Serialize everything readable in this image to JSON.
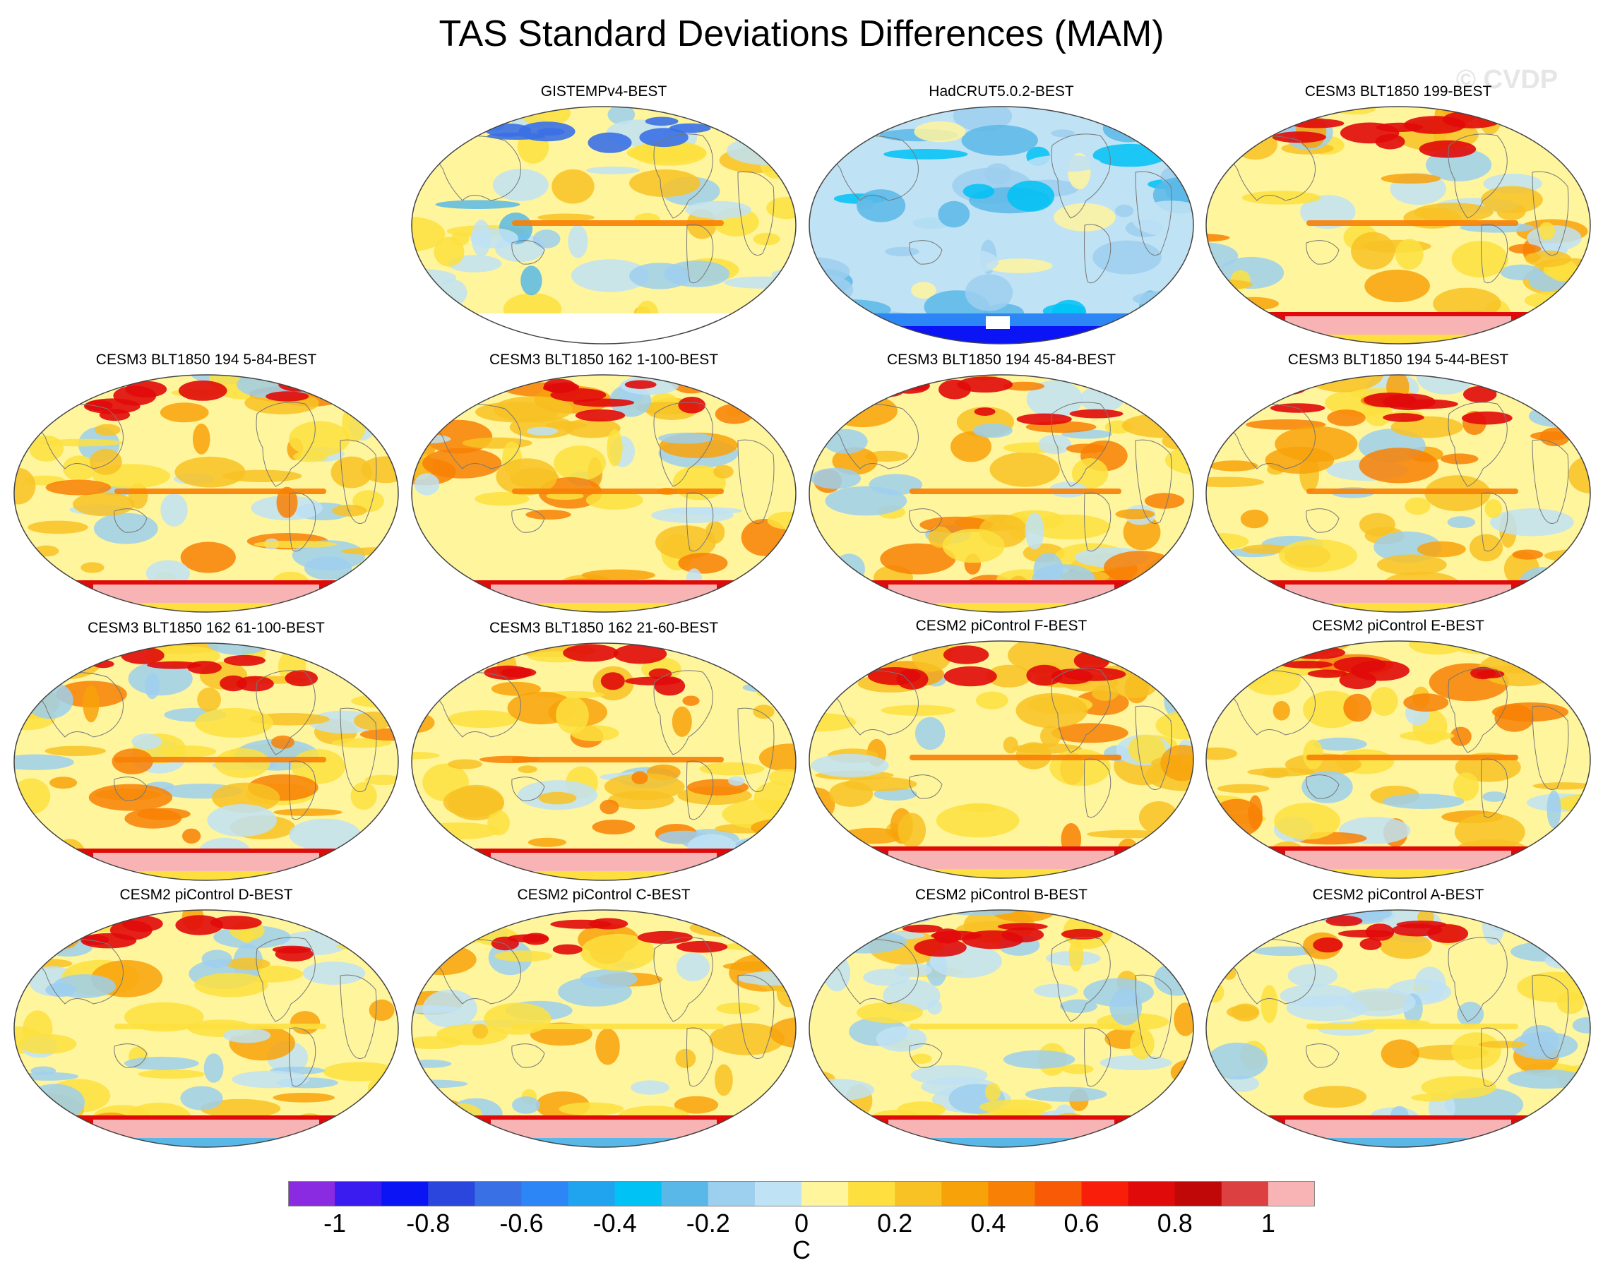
{
  "title": "TAS Standard Deviations Differences (MAM)",
  "watermark": "© CVDP",
  "units": "C",
  "colorbar": {
    "colors": [
      "#8a2be2",
      "#3a1cf0",
      "#0a14f5",
      "#2a46dc",
      "#3a70e6",
      "#2c86f5",
      "#21a4f0",
      "#00c2f5",
      "#5ab8e8",
      "#9dcfee",
      "#bfe2f5",
      "#fff59d",
      "#fde040",
      "#f8c224",
      "#f8a20a",
      "#f88004",
      "#f85a06",
      "#f81e0a",
      "#e00a0a",
      "#c00808",
      "#dc4040",
      "#f8b4b4"
    ],
    "labels": [
      "-1",
      "-0.8",
      "-0.6",
      "-0.4",
      "-0.2",
      "0",
      "0.2",
      "0.4",
      "0.6",
      "0.8",
      "1"
    ]
  },
  "panels": [
    {
      "title": "GISTEMPv4-BEST",
      "style": "obs"
    },
    {
      "title": "HadCRUT5.0.2-BEST",
      "style": "had"
    },
    {
      "title": "CESM3 BLT1850 199-BEST",
      "style": "model"
    },
    {
      "title": "CESM3 BLT1850 194 5-84-BEST",
      "style": "model"
    },
    {
      "title": "CESM3 BLT1850 162 1-100-BEST",
      "style": "model"
    },
    {
      "title": "CESM3 BLT1850 194 45-84-BEST",
      "style": "model"
    },
    {
      "title": "CESM3 BLT1850 194 5-44-BEST",
      "style": "model"
    },
    {
      "title": "CESM3 BLT1850 162 61-100-BEST",
      "style": "model"
    },
    {
      "title": "CESM3 BLT1850 162 21-60-BEST",
      "style": "model"
    },
    {
      "title": "CESM2 piControl F-BEST",
      "style": "model"
    },
    {
      "title": "CESM2 piControl E-BEST",
      "style": "model"
    },
    {
      "title": "CESM2 piControl D-BEST",
      "style": "model2"
    },
    {
      "title": "CESM2 piControl C-BEST",
      "style": "model2"
    },
    {
      "title": "CESM2 piControl B-BEST",
      "style": "model2"
    },
    {
      "title": "CESM2 piControl A-BEST",
      "style": "model2"
    }
  ]
}
